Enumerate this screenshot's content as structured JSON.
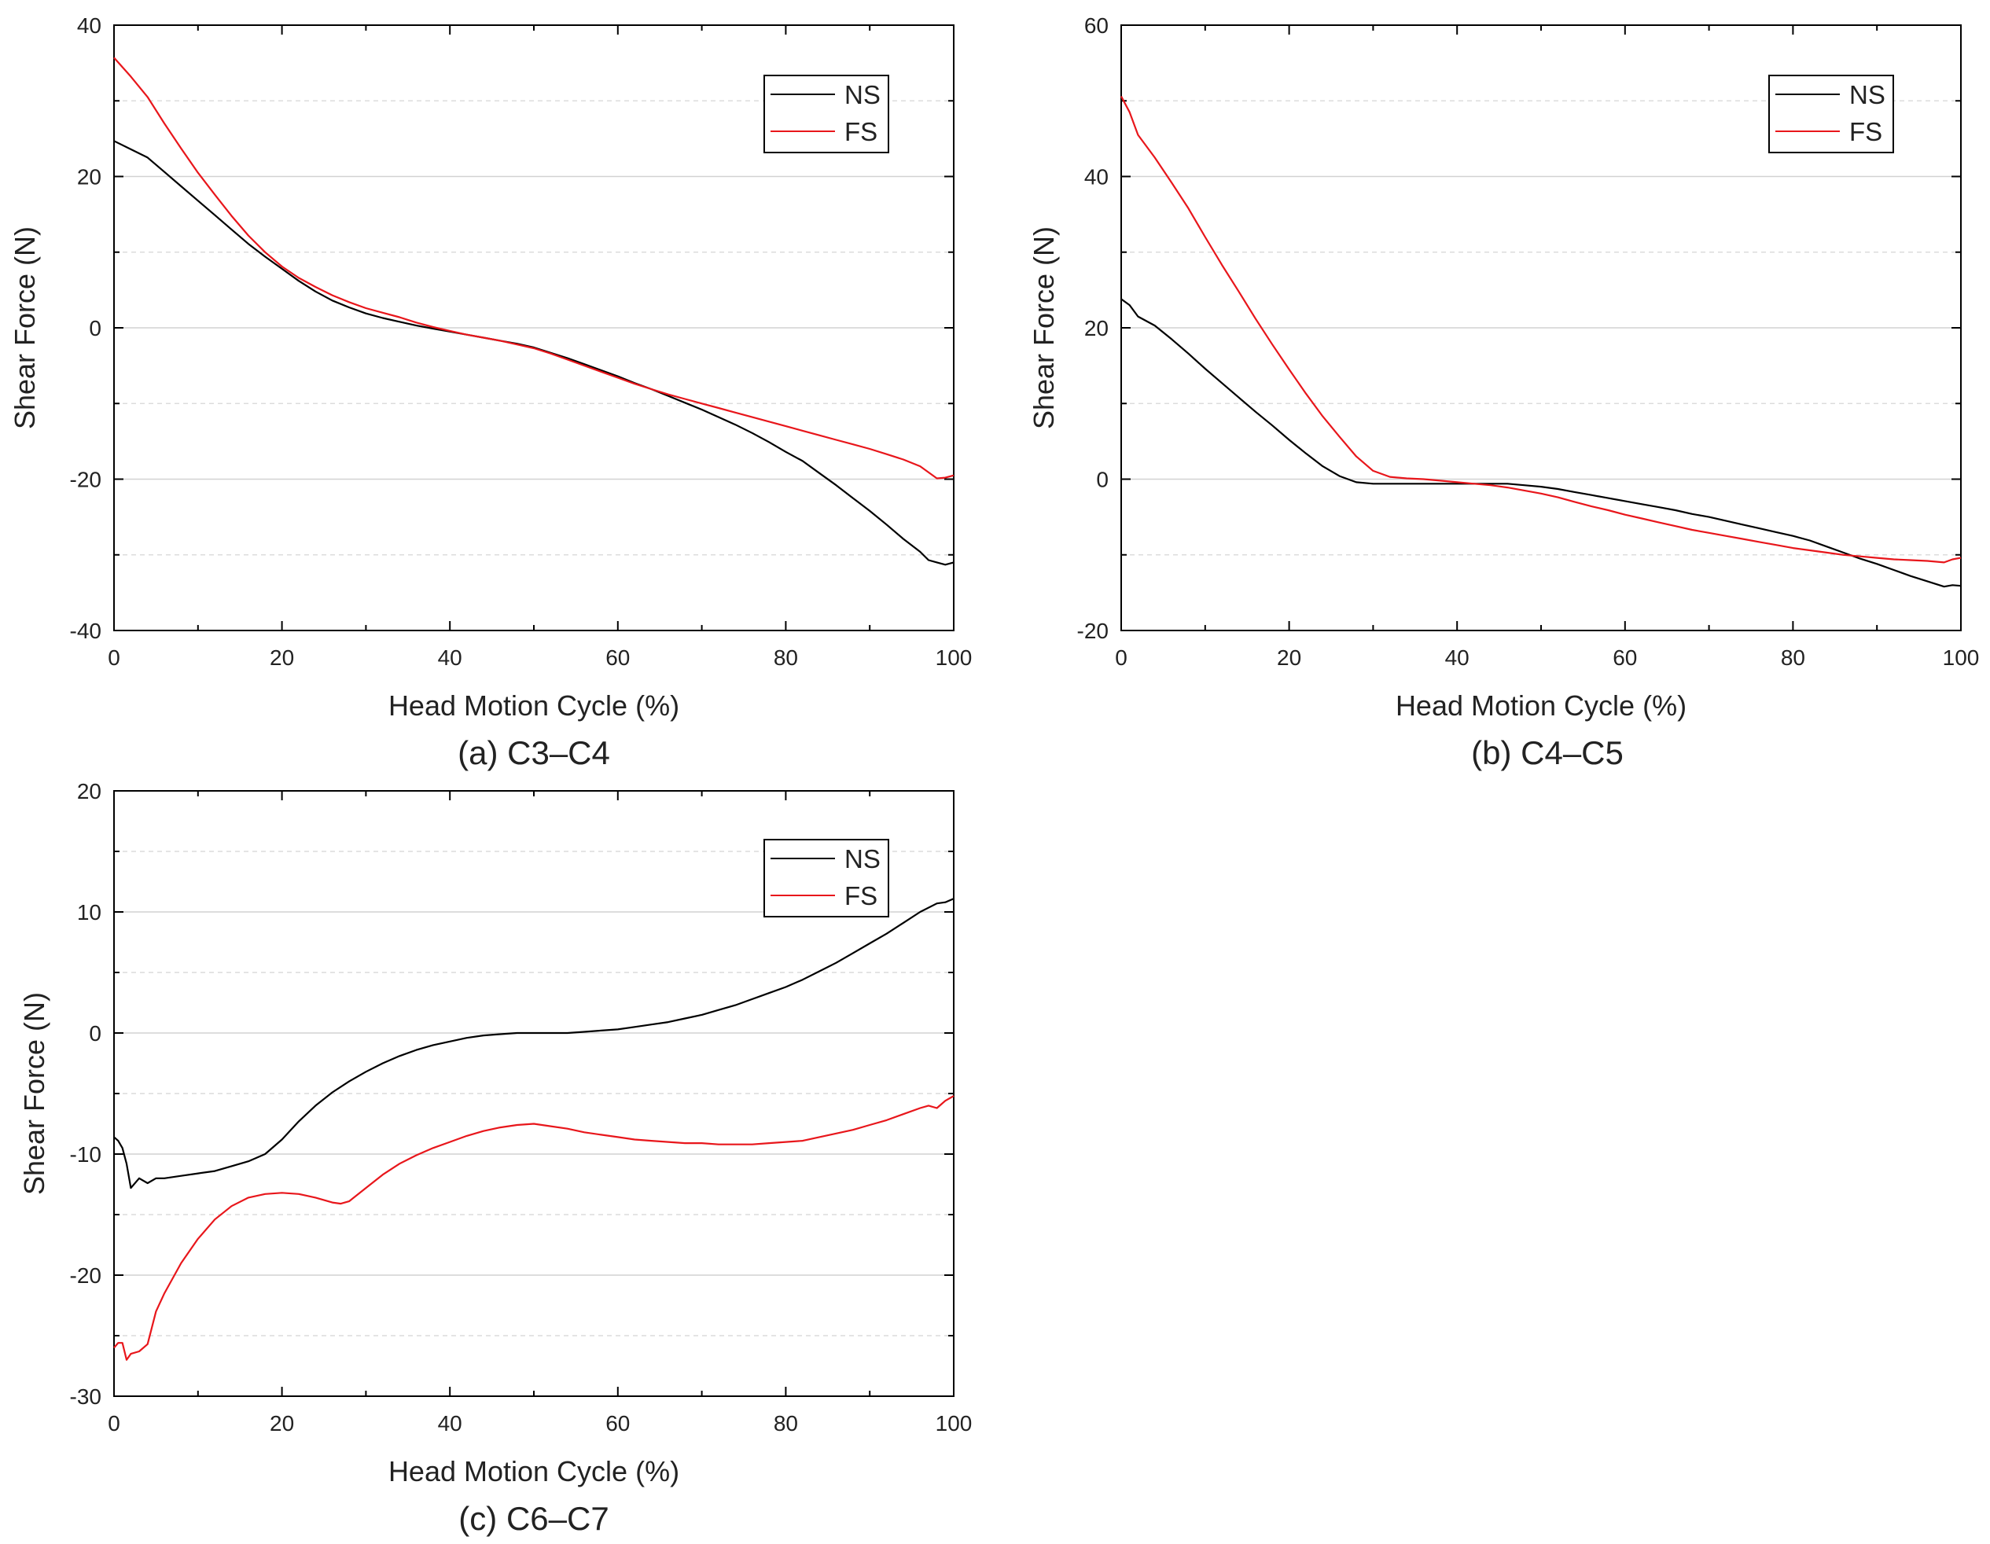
{
  "chart_data": [
    {
      "type": "line",
      "caption": "(a) C3–C4",
      "xlabel": "Head Motion Cycle (%)",
      "ylabel": "Shear Force (N)",
      "xlim": [
        0,
        100
      ],
      "ylim": [
        -40,
        40
      ],
      "xticks": [
        0,
        20,
        40,
        60,
        80,
        100
      ],
      "yticks": [
        -40,
        -20,
        0,
        20,
        40
      ],
      "minor_grid": [
        -30,
        -10,
        10,
        30
      ],
      "legend": "top-right",
      "series": [
        {
          "name": "NS",
          "color": "#000000",
          "x": [
            0,
            2,
            4,
            6,
            8,
            10,
            12,
            14,
            16,
            18,
            20,
            22,
            24,
            26,
            28,
            30,
            32,
            34,
            36,
            38,
            40,
            42,
            44,
            46,
            48,
            50,
            52,
            54,
            56,
            58,
            60,
            62,
            64,
            66,
            68,
            70,
            72,
            74,
            76,
            78,
            80,
            82,
            84,
            86,
            88,
            90,
            92,
            94,
            96,
            97,
            98,
            99,
            100
          ],
          "y": [
            24.7,
            23.6,
            22.5,
            20.6,
            18.7,
            16.8,
            14.9,
            13.0,
            11.1,
            9.4,
            7.8,
            6.2,
            4.8,
            3.6,
            2.7,
            1.9,
            1.3,
            0.8,
            0.3,
            -0.1,
            -0.5,
            -0.9,
            -1.3,
            -1.7,
            -2.1,
            -2.6,
            -3.3,
            -4.0,
            -4.8,
            -5.6,
            -6.4,
            -7.3,
            -8.1,
            -9.0,
            -9.9,
            -10.8,
            -11.8,
            -12.8,
            -13.9,
            -15.1,
            -16.4,
            -17.6,
            -19.2,
            -20.8,
            -22.5,
            -24.2,
            -26.0,
            -27.9,
            -29.6,
            -30.7,
            -31.0,
            -31.3,
            -31.0
          ]
        },
        {
          "name": "FS",
          "color": "#e8161b",
          "x": [
            0,
            2,
            4,
            6,
            8,
            10,
            12,
            14,
            16,
            18,
            20,
            22,
            24,
            26,
            28,
            30,
            32,
            34,
            36,
            38,
            40,
            42,
            44,
            46,
            48,
            50,
            52,
            54,
            56,
            58,
            60,
            62,
            64,
            66,
            68,
            70,
            72,
            74,
            76,
            78,
            80,
            82,
            84,
            86,
            88,
            90,
            92,
            94,
            96,
            98,
            99,
            100
          ],
          "y": [
            35.7,
            33.2,
            30.5,
            27.0,
            23.7,
            20.5,
            17.6,
            14.8,
            12.2,
            10.0,
            8.1,
            6.6,
            5.4,
            4.3,
            3.4,
            2.6,
            2.0,
            1.4,
            0.7,
            0.1,
            -0.4,
            -0.9,
            -1.3,
            -1.7,
            -2.2,
            -2.7,
            -3.4,
            -4.2,
            -5.0,
            -5.8,
            -6.6,
            -7.4,
            -8.1,
            -8.8,
            -9.4,
            -10.0,
            -10.6,
            -11.2,
            -11.8,
            -12.4,
            -13.0,
            -13.6,
            -14.2,
            -14.8,
            -15.4,
            -16.0,
            -16.7,
            -17.4,
            -18.3,
            -19.9,
            -19.8,
            -19.5
          ]
        }
      ]
    },
    {
      "type": "line",
      "caption": "(b) C4–C5",
      "xlabel": "Head Motion Cycle (%)",
      "ylabel": "Shear Force (N)",
      "xlim": [
        0,
        100
      ],
      "ylim": [
        -20,
        60
      ],
      "xticks": [
        0,
        20,
        40,
        60,
        80,
        100
      ],
      "yticks": [
        -20,
        0,
        20,
        40,
        60
      ],
      "minor_grid": [
        -10,
        10,
        30,
        50
      ],
      "legend": "top-right",
      "series": [
        {
          "name": "NS",
          "color": "#000000",
          "x": [
            0,
            1,
            2,
            4,
            6,
            8,
            10,
            12,
            14,
            16,
            18,
            20,
            22,
            24,
            26,
            28,
            30,
            32,
            34,
            36,
            38,
            40,
            42,
            44,
            46,
            48,
            50,
            52,
            54,
            56,
            58,
            60,
            62,
            64,
            66,
            68,
            70,
            72,
            74,
            76,
            78,
            80,
            82,
            84,
            86,
            88,
            90,
            92,
            94,
            96,
            98,
            99,
            100
          ],
          "y": [
            23.8,
            23.0,
            21.5,
            20.3,
            18.5,
            16.6,
            14.6,
            12.7,
            10.8,
            8.9,
            7.1,
            5.2,
            3.4,
            1.7,
            0.4,
            -0.4,
            -0.6,
            -0.6,
            -0.6,
            -0.6,
            -0.6,
            -0.6,
            -0.6,
            -0.6,
            -0.6,
            -0.8,
            -1.0,
            -1.3,
            -1.7,
            -2.1,
            -2.5,
            -2.9,
            -3.3,
            -3.7,
            -4.1,
            -4.6,
            -5.0,
            -5.5,
            -6.0,
            -6.5,
            -7.0,
            -7.5,
            -8.1,
            -8.9,
            -9.7,
            -10.5,
            -11.2,
            -12.0,
            -12.8,
            -13.5,
            -14.2,
            -14.0,
            -14.1
          ]
        },
        {
          "name": "FS",
          "color": "#e8161b",
          "x": [
            0,
            1,
            2,
            4,
            6,
            8,
            10,
            12,
            14,
            16,
            18,
            20,
            22,
            24,
            26,
            28,
            30,
            32,
            34,
            36,
            38,
            40,
            42,
            44,
            46,
            48,
            50,
            52,
            54,
            56,
            58,
            60,
            62,
            64,
            66,
            68,
            70,
            72,
            74,
            76,
            78,
            80,
            82,
            84,
            86,
            88,
            90,
            92,
            94,
            96,
            98,
            99,
            100
          ],
          "y": [
            50.6,
            48.5,
            45.5,
            42.5,
            39.2,
            35.8,
            32.0,
            28.3,
            24.8,
            21.2,
            17.8,
            14.5,
            11.3,
            8.3,
            5.6,
            3.0,
            1.1,
            0.3,
            0.1,
            0.0,
            -0.2,
            -0.4,
            -0.6,
            -0.8,
            -1.1,
            -1.5,
            -1.9,
            -2.4,
            -3.0,
            -3.6,
            -4.1,
            -4.7,
            -5.2,
            -5.7,
            -6.2,
            -6.7,
            -7.1,
            -7.5,
            -7.9,
            -8.3,
            -8.7,
            -9.1,
            -9.4,
            -9.7,
            -10.0,
            -10.2,
            -10.4,
            -10.6,
            -10.7,
            -10.8,
            -11.0,
            -10.6,
            -10.4
          ]
        }
      ]
    },
    {
      "type": "line",
      "caption": "(c) C6–C7",
      "xlabel": "Head Motion Cycle (%)",
      "ylabel": "Shear Force (N)",
      "xlim": [
        0,
        100
      ],
      "ylim": [
        -30,
        20
      ],
      "xticks": [
        0,
        20,
        40,
        60,
        80,
        100
      ],
      "yticks": [
        -30,
        -20,
        -10,
        0,
        10,
        20
      ],
      "minor_grid": [
        -25,
        -15,
        -5,
        5,
        15
      ],
      "legend": "top-right",
      "series": [
        {
          "name": "NS",
          "color": "#000000",
          "x": [
            0,
            0.5,
            1,
            1.5,
            2,
            3,
            4,
            5,
            6,
            8,
            10,
            12,
            14,
            16,
            18,
            20,
            22,
            24,
            26,
            28,
            30,
            32,
            34,
            36,
            38,
            40,
            42,
            44,
            46,
            48,
            50,
            52,
            54,
            56,
            58,
            60,
            62,
            64,
            66,
            68,
            70,
            72,
            74,
            76,
            78,
            80,
            82,
            84,
            86,
            88,
            90,
            92,
            94,
            96,
            98,
            99,
            100
          ],
          "y": [
            -8.6,
            -8.9,
            -9.5,
            -10.8,
            -12.8,
            -12.0,
            -12.4,
            -12.0,
            -12.0,
            -11.8,
            -11.6,
            -11.4,
            -11.0,
            -10.6,
            -10.0,
            -8.8,
            -7.3,
            -6.0,
            -4.9,
            -4.0,
            -3.2,
            -2.5,
            -1.9,
            -1.4,
            -1.0,
            -0.7,
            -0.4,
            -0.2,
            -0.1,
            0.0,
            0.0,
            0.0,
            0.0,
            0.1,
            0.2,
            0.3,
            0.5,
            0.7,
            0.9,
            1.2,
            1.5,
            1.9,
            2.3,
            2.8,
            3.3,
            3.8,
            4.4,
            5.1,
            5.8,
            6.6,
            7.4,
            8.2,
            9.1,
            10.0,
            10.7,
            10.8,
            11.1
          ]
        },
        {
          "name": "FS",
          "color": "#e8161b",
          "x": [
            0,
            0.5,
            1,
            1.5,
            2,
            3,
            4,
            5,
            6,
            8,
            10,
            12,
            14,
            16,
            18,
            20,
            22,
            24,
            26,
            27,
            28,
            30,
            32,
            34,
            36,
            38,
            40,
            42,
            44,
            46,
            48,
            50,
            52,
            54,
            56,
            58,
            60,
            62,
            64,
            66,
            68,
            70,
            72,
            74,
            76,
            78,
            80,
            82,
            84,
            86,
            88,
            90,
            92,
            94,
            96,
            97,
            98,
            99,
            100
          ],
          "y": [
            -26.0,
            -25.6,
            -25.6,
            -27.0,
            -26.5,
            -26.3,
            -25.7,
            -23.0,
            -21.5,
            -19.0,
            -17.0,
            -15.4,
            -14.3,
            -13.6,
            -13.3,
            -13.2,
            -13.3,
            -13.6,
            -14.0,
            -14.1,
            -13.9,
            -12.8,
            -11.7,
            -10.8,
            -10.1,
            -9.5,
            -9.0,
            -8.5,
            -8.1,
            -7.8,
            -7.6,
            -7.5,
            -7.7,
            -7.9,
            -8.2,
            -8.4,
            -8.6,
            -8.8,
            -8.9,
            -9.0,
            -9.1,
            -9.1,
            -9.2,
            -9.2,
            -9.2,
            -9.1,
            -9.0,
            -8.9,
            -8.6,
            -8.3,
            -8.0,
            -7.6,
            -7.2,
            -6.7,
            -6.2,
            -6.0,
            -6.2,
            -5.6,
            -5.2
          ]
        }
      ]
    }
  ]
}
